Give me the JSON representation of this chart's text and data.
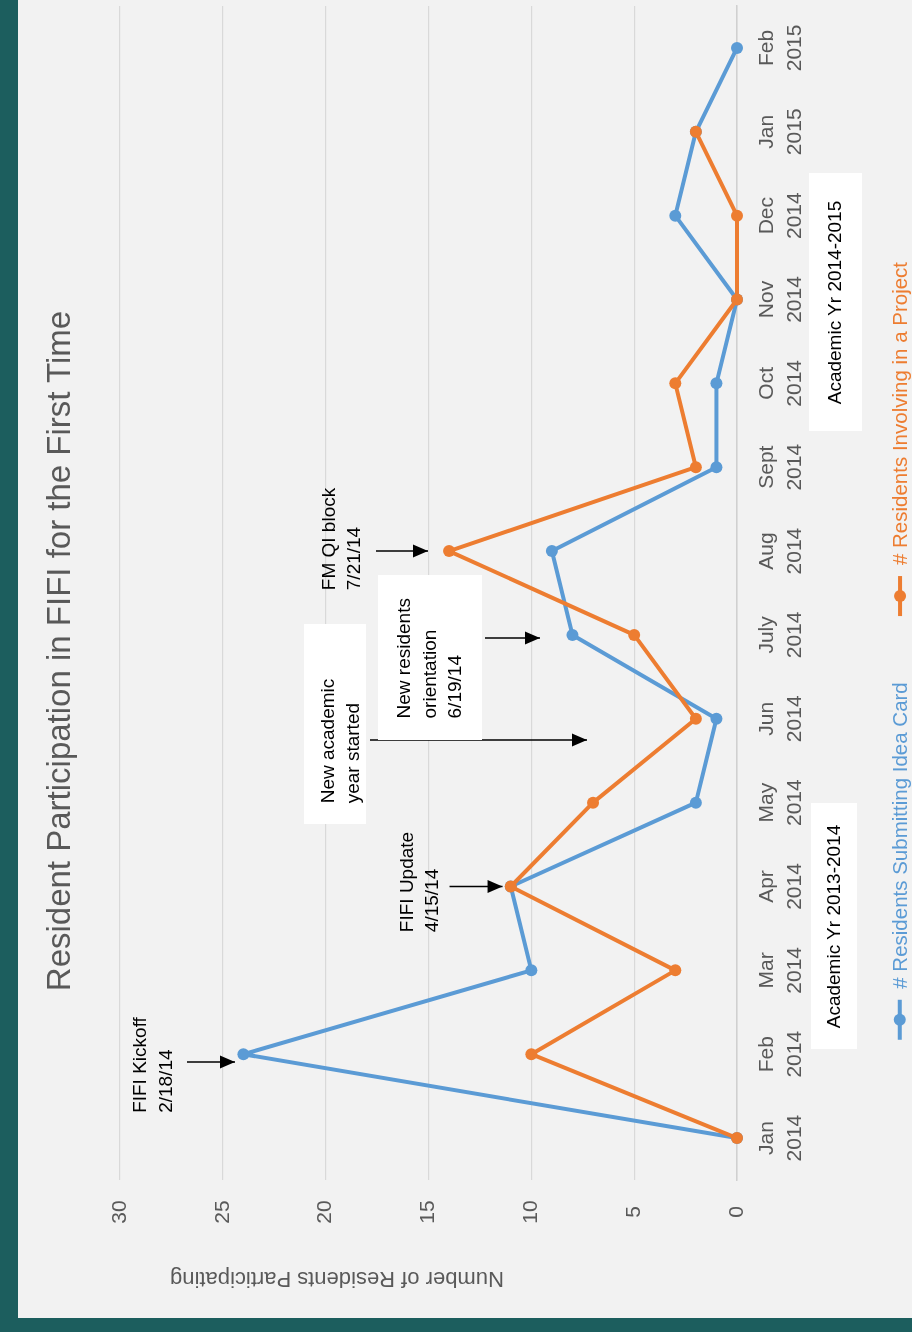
{
  "chart_data": {
    "type": "line",
    "orientation": "horizontal",
    "title": "Resident Participation in FIFI for the First Time",
    "xlabel": "Number of Residents Participating",
    "categories": [
      "Feb 2015",
      "Jan 2015",
      "Dec 2014",
      "Nov 2014",
      "Oct 2014",
      "Sept 2014",
      "Aug 2014",
      "July 2014",
      "Jun 2014",
      "May 2014",
      "Apr 2014",
      "Mar 2014",
      "Feb 2014",
      "Jan 2014"
    ],
    "series": [
      {
        "name": "# Residents Submitting Idea Card",
        "color": "#5b9bd5",
        "values": [
          0,
          2,
          3,
          0,
          1,
          1,
          9,
          8,
          1,
          2,
          11,
          10,
          24,
          0
        ]
      },
      {
        "name": "# Residents Involving in a Project",
        "color": "#ed7d31",
        "values": [
          null,
          2,
          0,
          0,
          3,
          2,
          14,
          5,
          2,
          7,
          11,
          3,
          10,
          0
        ]
      }
    ],
    "xlim": [
      30,
      0
    ],
    "xticks": [
      30,
      25,
      20,
      15,
      10,
      5,
      0
    ],
    "grid": "x",
    "legend": "right",
    "marker": "circle",
    "line_style": "solid",
    "annotations": [
      "FIFI Kickoff\n2/18/14",
      {
        "text": "FIFI Update\n4/15/14",
        "x": 11.4,
        "y": "Apr 2014"
      },
      "New academic\nyear started",
      "New residents\norientation\n6/19/14",
      "FM QI block\n7/21/14",
      "Academic Yr 2013-2014",
      "Academic Yr 2014-2015"
    ]
  }
}
